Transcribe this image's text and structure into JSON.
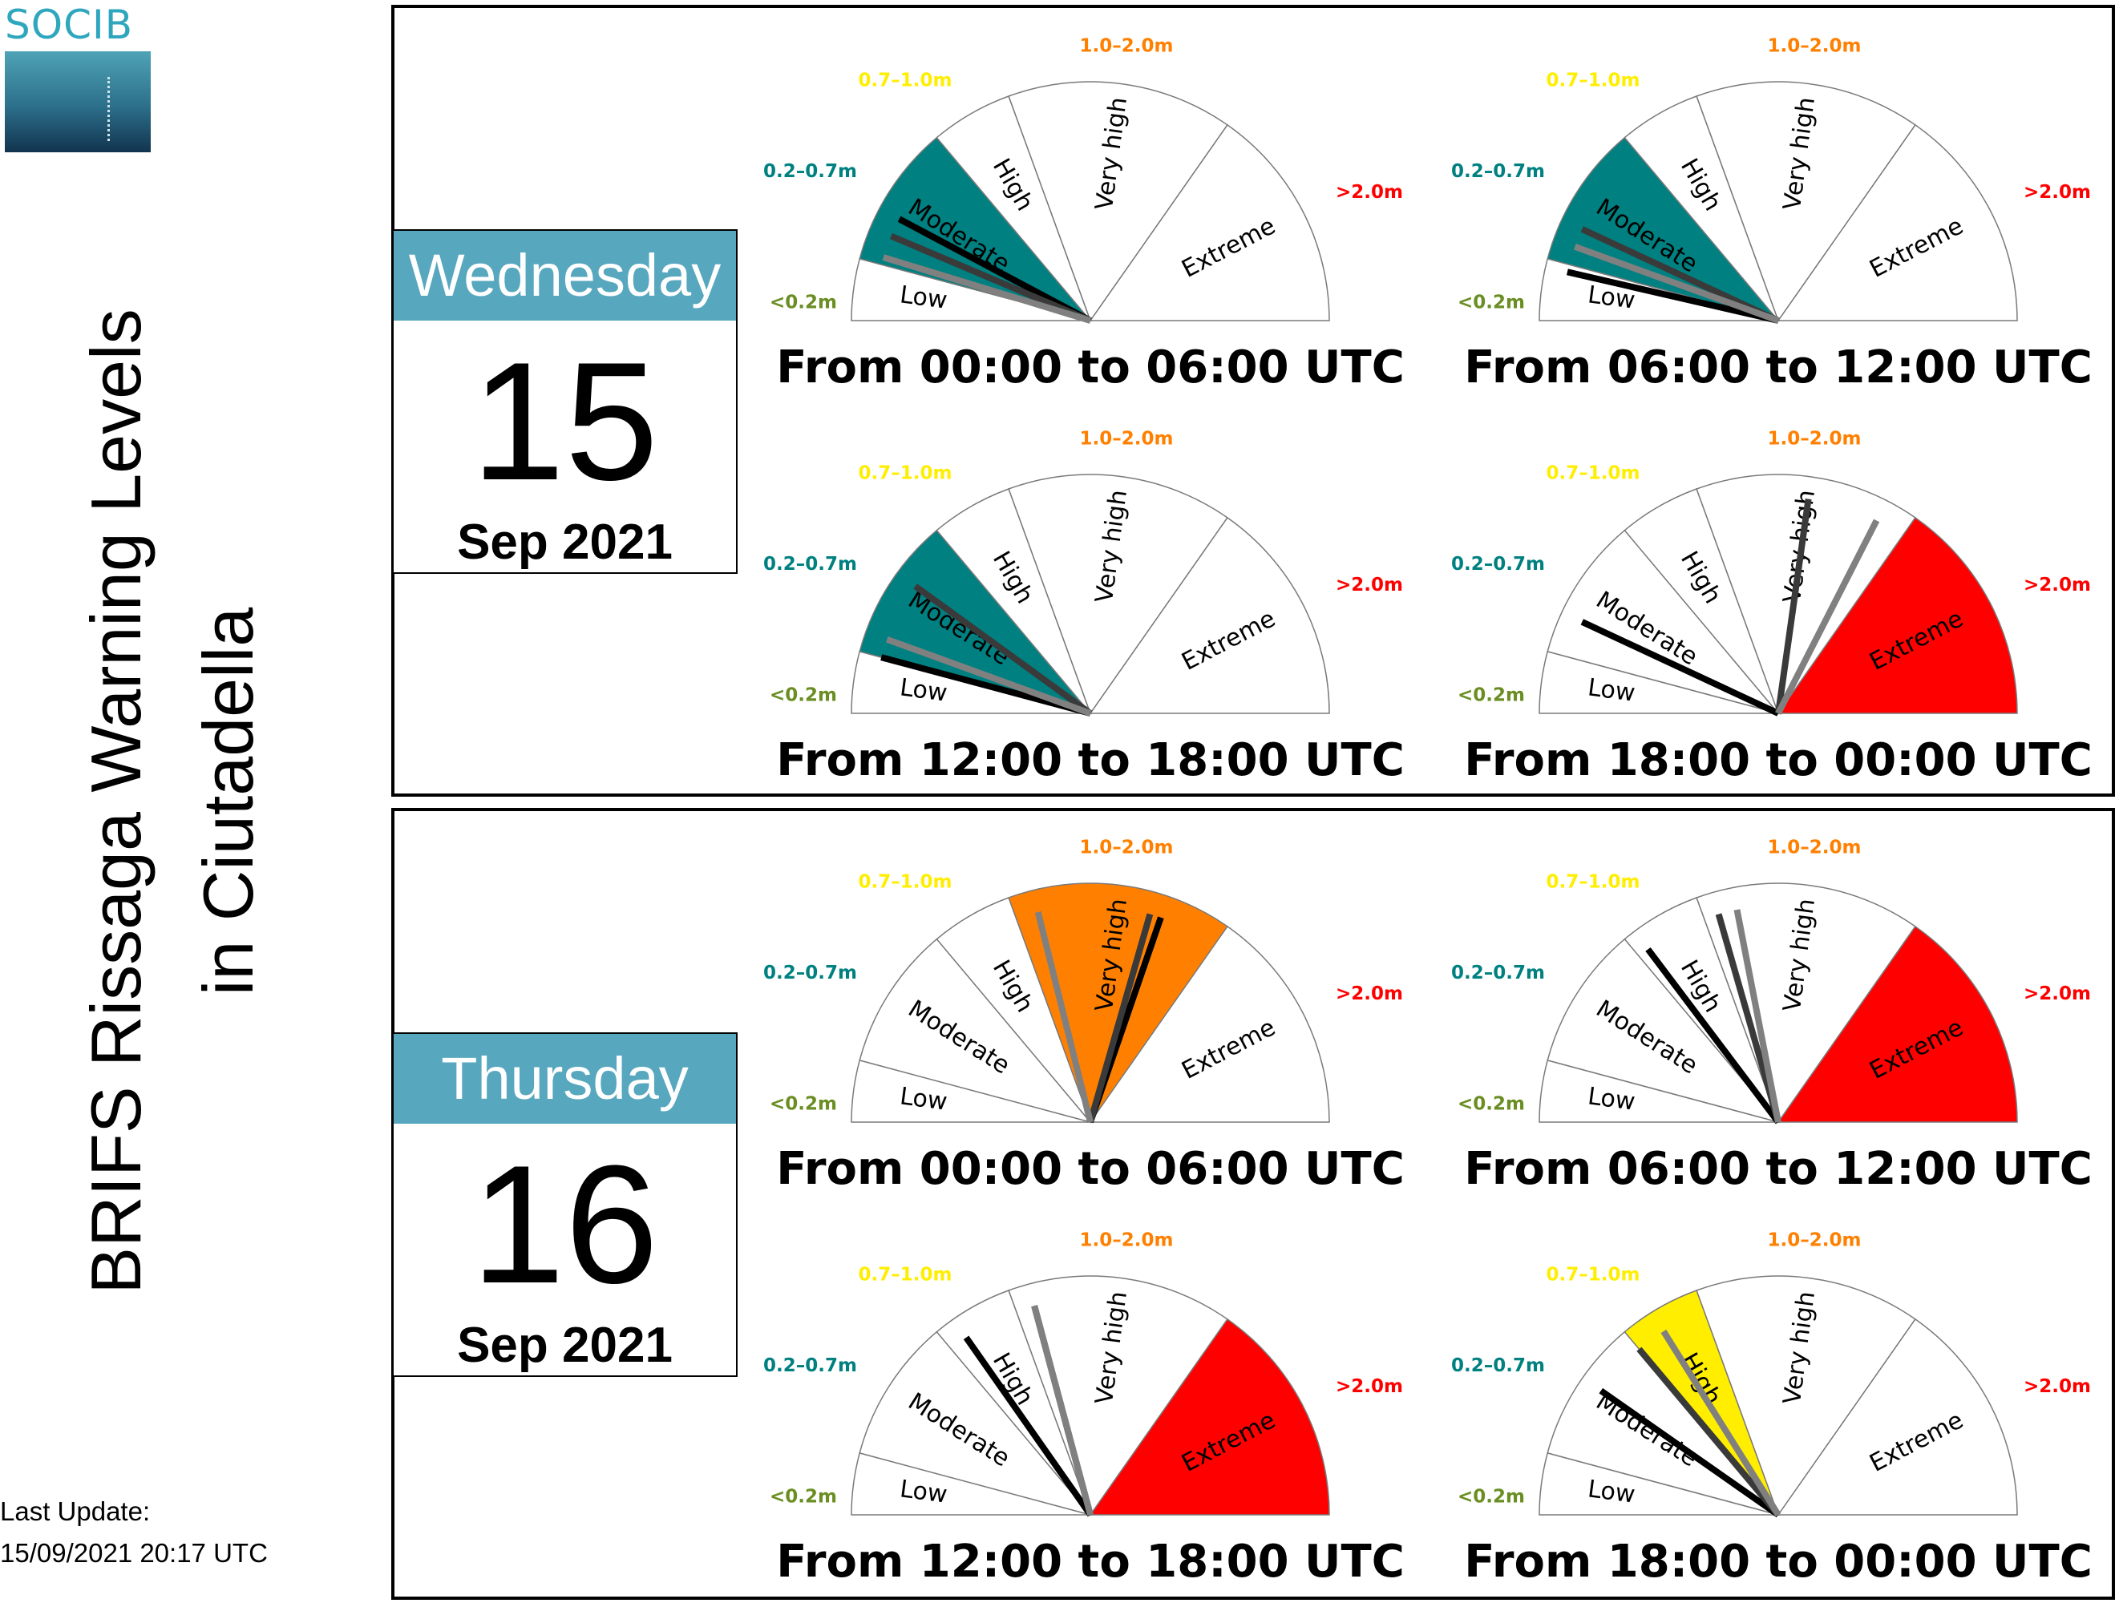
{
  "logo_text": "SOCIB",
  "title": {
    "line1": "BRIFS Rissaga Warning Levels",
    "line2": "in Ciutadella"
  },
  "last_update": {
    "label": "Last Update:",
    "value": "15/09/2021 20:17 UTC"
  },
  "colors": {
    "day_header": "#57a7be",
    "low": "#ffffff",
    "moderate": "#008080",
    "high": "#ffee00",
    "very_high": "#ff8000",
    "extreme": "#ff0000"
  },
  "days": [
    {
      "name": "Wednesday",
      "number": "15",
      "month": "Sep 2021"
    },
    {
      "name": "Thursday",
      "number": "16",
      "month": "Sep 2021"
    }
  ],
  "chart_data": {
    "type": "gauge",
    "sectors": [
      "Low",
      "Moderate",
      "High",
      "Very high",
      "Extreme"
    ],
    "thresholds": [
      "<0.2m",
      "0.2–0.7m",
      "0.7–1.0m",
      "1.0–2.0m",
      ">2.0m"
    ],
    "threshold_colors": [
      "#6b8e23",
      "#008080",
      "#ffee00",
      "#ff8000",
      "#ff0000"
    ],
    "sector_span_degrees": [
      15,
      35,
      20,
      55,
      55
    ],
    "needle_colors": [
      "#000000",
      "#3a3a3a",
      "#808080"
    ],
    "gauges": [
      {
        "day": 0,
        "period": "From 00:00 to 06:00 UTC",
        "level": "Moderate",
        "needles_deg": [
          28,
          23,
          17
        ]
      },
      {
        "day": 0,
        "period": "From 06:00 to 12:00 UTC",
        "level": "Moderate",
        "needles_deg": [
          13,
          25,
          20
        ]
      },
      {
        "day": 0,
        "period": "From 12:00 to 18:00 UTC",
        "level": "Moderate",
        "needles_deg": [
          15,
          36,
          20
        ]
      },
      {
        "day": 0,
        "period": "From 18:00 to 00:00 UTC",
        "level": "Extreme",
        "needles_deg": [
          25,
          98,
          117
        ]
      },
      {
        "day": 1,
        "period": "From 00:00 to 06:00 UTC",
        "level": "Very high",
        "needles_deg": [
          109,
          106,
          76
        ]
      },
      {
        "day": 1,
        "period": "From 06:00 to 12:00 UTC",
        "level": "Extreme",
        "needles_deg": [
          53,
          74,
          79
        ]
      },
      {
        "day": 1,
        "period": "From 12:00 to 18:00 UTC",
        "level": "Extreme",
        "needles_deg": [
          55,
          75,
          75
        ]
      },
      {
        "day": 1,
        "period": "From 18:00 to 00:00 UTC",
        "level": "High",
        "needles_deg": [
          35,
          50,
          58
        ]
      }
    ]
  }
}
